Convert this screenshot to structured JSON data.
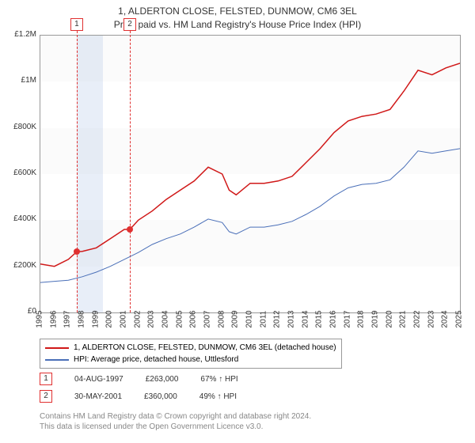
{
  "title": {
    "line1": "1, ALDERTON CLOSE, FELSTED, DUNMOW, CM6 3EL",
    "line2": "Price paid vs. HM Land Registry's House Price Index (HPI)"
  },
  "chart": {
    "type": "line",
    "background_color": "#ffffff",
    "border_color": "#999999",
    "x_range": [
      1995,
      2025
    ],
    "y_range": [
      0,
      1200000
    ],
    "y_ticks": [
      0,
      200000,
      400000,
      600000,
      800000,
      1000000,
      1200000
    ],
    "y_tick_labels": [
      "£0",
      "£200K",
      "£400K",
      "£600K",
      "£800K",
      "£1M",
      "£1.2M"
    ],
    "x_ticks": [
      1995,
      1996,
      1997,
      1998,
      1999,
      2000,
      2001,
      2002,
      2003,
      2004,
      2005,
      2006,
      2007,
      2008,
      2009,
      2010,
      2011,
      2012,
      2013,
      2014,
      2015,
      2016,
      2017,
      2018,
      2019,
      2020,
      2021,
      2022,
      2023,
      2024,
      2025
    ],
    "shade_band": {
      "x_start": 1997.6,
      "x_end": 1999.5,
      "color": "#e8eef8"
    },
    "markers": [
      {
        "label": "1",
        "x": 1997.6,
        "color": "#e03030",
        "date": "04-AUG-1997",
        "price": "£263,000",
        "hpi": "67% ↑ HPI",
        "y": 263000
      },
      {
        "label": "2",
        "x": 2001.4,
        "color": "#e03030",
        "date": "30-MAY-2001",
        "price": "£360,000",
        "hpi": "49% ↑ HPI",
        "y": 360000
      }
    ],
    "series": [
      {
        "name": "price_paid",
        "legend": "1, ALDERTON CLOSE, FELSTED, DUNMOW, CM6 3EL (detached house)",
        "color": "#d01818",
        "line_width": 1.5,
        "data": [
          [
            1995,
            210000
          ],
          [
            1996,
            200000
          ],
          [
            1997,
            230000
          ],
          [
            1997.6,
            263000
          ],
          [
            1998,
            265000
          ],
          [
            1999,
            280000
          ],
          [
            2000,
            320000
          ],
          [
            2001,
            360000
          ],
          [
            2001.4,
            360000
          ],
          [
            2002,
            400000
          ],
          [
            2003,
            440000
          ],
          [
            2004,
            490000
          ],
          [
            2005,
            530000
          ],
          [
            2006,
            570000
          ],
          [
            2007,
            630000
          ],
          [
            2008,
            600000
          ],
          [
            2008.5,
            530000
          ],
          [
            2009,
            510000
          ],
          [
            2010,
            560000
          ],
          [
            2011,
            560000
          ],
          [
            2012,
            570000
          ],
          [
            2013,
            590000
          ],
          [
            2014,
            650000
          ],
          [
            2015,
            710000
          ],
          [
            2016,
            780000
          ],
          [
            2017,
            830000
          ],
          [
            2018,
            850000
          ],
          [
            2019,
            860000
          ],
          [
            2020,
            880000
          ],
          [
            2021,
            960000
          ],
          [
            2022,
            1050000
          ],
          [
            2023,
            1030000
          ],
          [
            2024,
            1060000
          ],
          [
            2025,
            1080000
          ]
        ]
      },
      {
        "name": "hpi",
        "legend": "HPI: Average price, detached house, Uttlesford",
        "color": "#4a6fb8",
        "line_width": 1,
        "data": [
          [
            1995,
            130000
          ],
          [
            1996,
            135000
          ],
          [
            1997,
            140000
          ],
          [
            1998,
            155000
          ],
          [
            1999,
            175000
          ],
          [
            2000,
            200000
          ],
          [
            2001,
            230000
          ],
          [
            2002,
            260000
          ],
          [
            2003,
            295000
          ],
          [
            2004,
            320000
          ],
          [
            2005,
            340000
          ],
          [
            2006,
            370000
          ],
          [
            2007,
            405000
          ],
          [
            2008,
            390000
          ],
          [
            2008.5,
            350000
          ],
          [
            2009,
            340000
          ],
          [
            2010,
            370000
          ],
          [
            2011,
            370000
          ],
          [
            2012,
            380000
          ],
          [
            2013,
            395000
          ],
          [
            2014,
            425000
          ],
          [
            2015,
            460000
          ],
          [
            2016,
            505000
          ],
          [
            2017,
            540000
          ],
          [
            2018,
            555000
          ],
          [
            2019,
            560000
          ],
          [
            2020,
            575000
          ],
          [
            2021,
            630000
          ],
          [
            2022,
            700000
          ],
          [
            2023,
            690000
          ],
          [
            2024,
            700000
          ],
          [
            2025,
            710000
          ]
        ]
      }
    ]
  },
  "footer": {
    "line1": "Contains HM Land Registry data © Crown copyright and database right 2024.",
    "line2": "This data is licensed under the Open Government Licence v3.0."
  }
}
